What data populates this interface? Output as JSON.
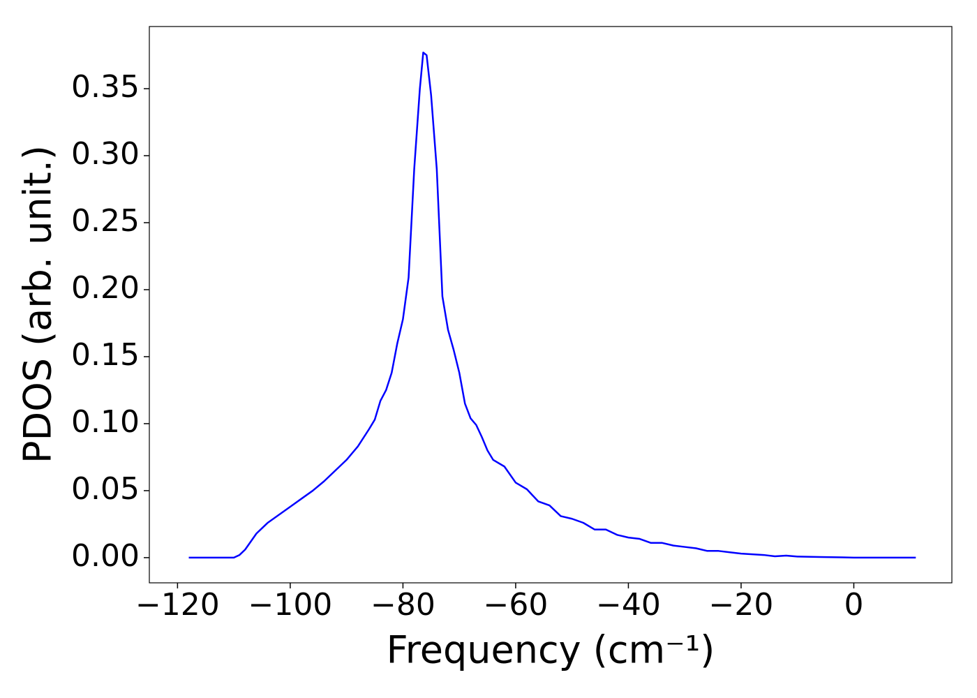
{
  "chart_data": {
    "type": "line",
    "xlabel": "Frequency (cm⁻¹)",
    "ylabel": "PDOS (arb. unit.)",
    "xlim": [
      -125,
      17.4
    ],
    "ylim": [
      -0.0188,
      0.3964
    ],
    "xticks": [
      {
        "value": -120,
        "label": "−120"
      },
      {
        "value": -100,
        "label": "−100"
      },
      {
        "value": -80,
        "label": "−80"
      },
      {
        "value": -60,
        "label": "−60"
      },
      {
        "value": -40,
        "label": "−40"
      },
      {
        "value": -20,
        "label": "−20"
      },
      0
    ],
    "yticks": [
      {
        "value": 0,
        "label": "0.00"
      },
      {
        "value": 0.05,
        "label": "0.05"
      },
      {
        "value": 0.1,
        "label": "0.10"
      },
      {
        "value": 0.15,
        "label": "0.15"
      },
      {
        "value": 0.2,
        "label": "0.20"
      },
      {
        "value": 0.25,
        "label": "0.25"
      },
      {
        "value": 0.3,
        "label": "0.30"
      },
      {
        "value": 0.35,
        "label": "0.35"
      }
    ],
    "grid": false,
    "series": [
      {
        "color": "#0000ff",
        "x": [
          -118,
          -110,
          -109,
          -108,
          -107,
          -106,
          -105,
          -104,
          -102,
          -100,
          -98,
          -96,
          -94,
          -92,
          -90,
          -88,
          -86,
          -85,
          -84,
          -83,
          -82,
          -81,
          -80,
          -79,
          -78,
          -77,
          -76.4,
          -75.8,
          -75,
          -74,
          -73,
          -72,
          -71,
          -70,
          -69,
          -68,
          -67,
          -66,
          -65,
          -64,
          -62,
          -60,
          -58,
          -56,
          -54,
          -52,
          -50,
          -48,
          -46,
          -44,
          -42,
          -40,
          -38,
          -36,
          -34,
          -32,
          -30,
          -28,
          -26,
          -24,
          -22,
          -20,
          -16,
          -14,
          -12,
          -10,
          -6,
          -2,
          0,
          11
        ],
        "values": [
          0,
          0,
          0.002,
          0.006,
          0.012,
          0.018,
          0.022,
          0.026,
          0.032,
          0.038,
          0.044,
          0.05,
          0.057,
          0.065,
          0.073,
          0.083,
          0.096,
          0.103,
          0.117,
          0.125,
          0.138,
          0.16,
          0.178,
          0.209,
          0.29,
          0.35,
          0.377,
          0.375,
          0.345,
          0.29,
          0.195,
          0.17,
          0.155,
          0.138,
          0.115,
          0.104,
          0.099,
          0.09,
          0.08,
          0.073,
          0.068,
          0.056,
          0.051,
          0.042,
          0.039,
          0.031,
          0.029,
          0.026,
          0.021,
          0.021,
          0.017,
          0.015,
          0.014,
          0.011,
          0.011,
          0.009,
          0.008,
          0.007,
          0.005,
          0.005,
          0.004,
          0.003,
          0.002,
          0.001,
          0.0015,
          0.0008,
          0.0005,
          0.0002,
          0,
          0
        ]
      }
    ]
  }
}
